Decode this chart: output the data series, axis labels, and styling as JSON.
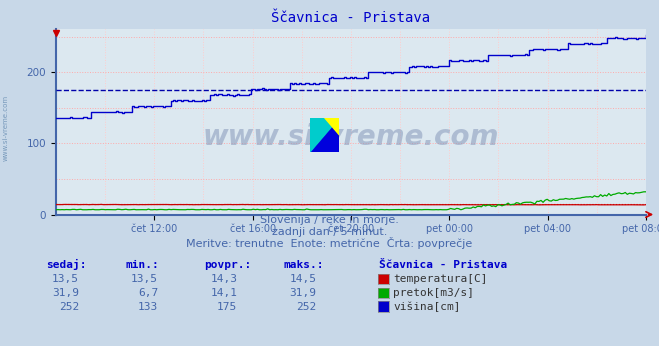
{
  "title": "Ščavnica - Pristava",
  "title_color": "#0000cc",
  "bg_color": "#c8d8e8",
  "plot_bg_color": "#dce8f0",
  "grid_v_color": "#ffcccc",
  "grid_h_color": "#ffaaaa",
  "avg_visina_color": "#0000aa",
  "avg_temp_color": "#cc0000",
  "watermark": "www.si-vreme.com",
  "subtitle_lines": [
    "Slovenija / reke in morje.",
    "zadnji dan / 5 minut.",
    "Meritve: trenutne  Enote: metrične  Črta: povprečje"
  ],
  "xticklabels": [
    "čet 12:00",
    "čet 16:00",
    "čet 20:00",
    "pet 00:00",
    "pet 04:00",
    "pet 08:00"
  ],
  "yticks": [
    0,
    100,
    200
  ],
  "ylim": [
    0,
    260
  ],
  "n_points": 288,
  "temp_sedaj": "13,5",
  "temp_min": "13,5",
  "temp_povpr": "14,3",
  "temp_maks": "14,5",
  "pretok_sedaj": "31,9",
  "pretok_min": "6,7",
  "pretok_povpr": "14,1",
  "pretok_maks": "31,9",
  "visina_sedaj": "252",
  "visina_min": "133",
  "visina_povpr": "175",
  "visina_maks": "252",
  "temp_color": "#cc0000",
  "pretok_color": "#00aa00",
  "visina_color": "#0000cc",
  "legend_color": "#4466aa",
  "table_header_color": "#0000cc",
  "table_value_color": "#4466aa",
  "left_label_color": "#7799bb"
}
